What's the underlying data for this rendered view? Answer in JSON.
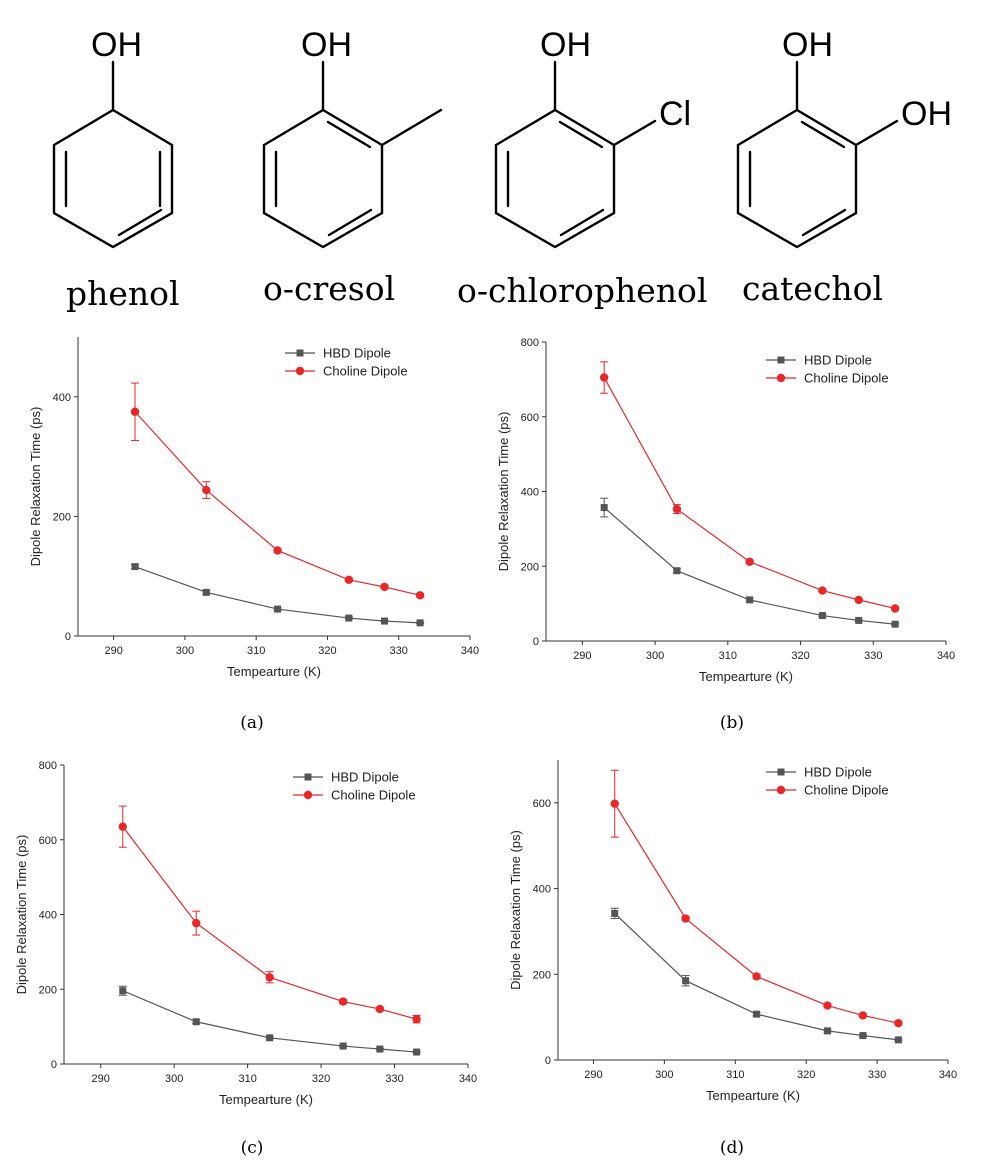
{
  "molecules": [
    {
      "name": "phenol",
      "substituents": [
        "OH"
      ]
    },
    {
      "name": "o-cresol",
      "substituents": [
        "OH"
      ]
    },
    {
      "name": "o-chlorophenol",
      "substituents": [
        "OH",
        "Cl"
      ]
    },
    {
      "name": "catechol",
      "substituents": [
        "OH",
        "OH"
      ]
    }
  ],
  "colors": {
    "hbd": "#555555",
    "choline": "#e8272a"
  },
  "chart_data": [
    {
      "type": "line",
      "panel_label": "(a)",
      "xlabel": "Tempearture (K)",
      "ylabel": "Dipole Relaxation Time (ps)",
      "xlim": [
        285,
        340
      ],
      "ylim": [
        0,
        500
      ],
      "xticks": [
        290,
        300,
        310,
        320,
        330,
        340
      ],
      "yticks": [
        0,
        200,
        400
      ],
      "legend": "top-right",
      "x": [
        293,
        303,
        313,
        323,
        328,
        333
      ],
      "series": [
        {
          "name": "HBD Dipole",
          "values": [
            116,
            73,
            45,
            30,
            25,
            22
          ],
          "errors": [
            3,
            3,
            2,
            2,
            1,
            1
          ]
        },
        {
          "name": "Choline Dipole",
          "values": [
            375,
            244,
            143,
            94,
            82,
            68
          ],
          "errors": [
            48,
            14,
            3,
            3,
            3,
            3
          ]
        }
      ]
    },
    {
      "type": "line",
      "panel_label": "(b)",
      "xlabel": "Tempearture (K)",
      "ylabel": "Dipole Relaxation Time (ps)",
      "xlim": [
        285,
        340
      ],
      "ylim": [
        0,
        800
      ],
      "xticks": [
        290,
        300,
        310,
        320,
        330,
        340
      ],
      "yticks": [
        0,
        200,
        400,
        600,
        800
      ],
      "legend": "top-right",
      "x": [
        293,
        303,
        313,
        323,
        328,
        333
      ],
      "series": [
        {
          "name": "HBD Dipole",
          "values": [
            357,
            188,
            110,
            68,
            55,
            45
          ],
          "errors": [
            25,
            5,
            5,
            3,
            2,
            2
          ]
        },
        {
          "name": "Choline Dipole",
          "values": [
            705,
            353,
            212,
            135,
            110,
            87
          ],
          "errors": [
            42,
            12,
            4,
            3,
            3,
            3
          ]
        }
      ]
    },
    {
      "type": "line",
      "panel_label": "(c)",
      "xlabel": "Tempearture (K)",
      "ylabel": "Dipole Relaxation Time (ps)",
      "xlim": [
        285,
        340
      ],
      "ylim": [
        0,
        800
      ],
      "xticks": [
        290,
        300,
        310,
        320,
        330,
        340
      ],
      "yticks": [
        0,
        200,
        400,
        600,
        800
      ],
      "legend": "top-right",
      "x": [
        293,
        303,
        313,
        323,
        328,
        333
      ],
      "series": [
        {
          "name": "HBD Dipole",
          "values": [
            196,
            113,
            70,
            48,
            40,
            32
          ],
          "errors": [
            12,
            4,
            3,
            2,
            2,
            2
          ]
        },
        {
          "name": "Choline Dipole",
          "values": [
            635,
            377,
            232,
            167,
            147,
            120
          ],
          "errors": [
            55,
            32,
            15,
            5,
            5,
            10
          ]
        }
      ]
    },
    {
      "type": "line",
      "panel_label": "(d)",
      "xlabel": "Tempearture (K)",
      "ylabel": "Dipole Relaxation Time (ps)",
      "xlim": [
        285,
        340
      ],
      "ylim": [
        0,
        700
      ],
      "xticks": [
        290,
        300,
        310,
        320,
        330,
        340
      ],
      "yticks": [
        0,
        200,
        400,
        600
      ],
      "legend": "top-right",
      "x": [
        293,
        303,
        313,
        323,
        328,
        333
      ],
      "series": [
        {
          "name": "HBD Dipole",
          "values": [
            342,
            185,
            107,
            68,
            57,
            47
          ],
          "errors": [
            12,
            12,
            4,
            3,
            2,
            2
          ]
        },
        {
          "name": "Choline Dipole",
          "values": [
            598,
            330,
            195,
            127,
            104,
            86
          ],
          "errors": [
            78,
            5,
            4,
            3,
            3,
            3
          ]
        }
      ]
    }
  ]
}
